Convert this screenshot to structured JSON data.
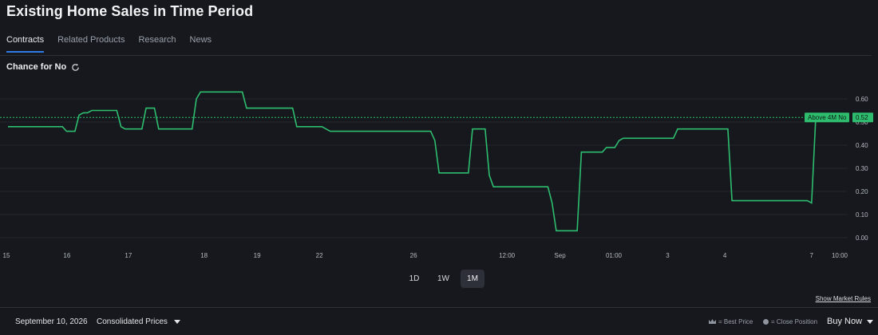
{
  "title": "Existing Home Sales in Time Period",
  "tabs": [
    {
      "label": "Contracts"
    },
    {
      "label": "Related Products"
    },
    {
      "label": "Research"
    },
    {
      "label": "News"
    }
  ],
  "chance_label": "Chance for No",
  "chart_data": {
    "type": "line",
    "series": [
      {
        "name": "Above 4M No",
        "color": "#2ebd6f",
        "values": [
          0.48,
          0.48,
          0.48,
          0.48,
          0.48,
          0.48,
          0.48,
          0.48,
          0.48,
          0.48,
          0.48,
          0.48,
          0.48,
          0.48,
          0.46,
          0.46,
          0.46,
          0.53,
          0.54,
          0.54,
          0.55,
          0.55,
          0.55,
          0.55,
          0.55,
          0.55,
          0.55,
          0.48,
          0.47,
          0.47,
          0.47,
          0.47,
          0.47,
          0.56,
          0.56,
          0.56,
          0.47,
          0.47,
          0.47,
          0.47,
          0.47,
          0.47,
          0.47,
          0.47,
          0.47,
          0.6,
          0.63,
          0.63,
          0.63,
          0.63,
          0.63,
          0.63,
          0.63,
          0.63,
          0.63,
          0.63,
          0.63,
          0.56,
          0.56,
          0.56,
          0.56,
          0.56,
          0.56,
          0.56,
          0.56,
          0.56,
          0.56,
          0.56,
          0.56,
          0.48,
          0.48,
          0.48,
          0.48,
          0.48,
          0.48,
          0.48,
          0.47,
          0.46,
          0.46,
          0.46,
          0.46,
          0.46,
          0.46,
          0.46,
          0.46,
          0.46,
          0.46,
          0.46,
          0.46,
          0.46,
          0.46,
          0.46,
          0.46,
          0.46,
          0.46,
          0.46,
          0.46,
          0.46,
          0.46,
          0.46,
          0.46,
          0.46,
          0.42,
          0.28,
          0.28,
          0.28,
          0.28,
          0.28,
          0.28,
          0.28,
          0.28,
          0.47,
          0.47,
          0.47,
          0.47,
          0.27,
          0.22,
          0.22,
          0.22,
          0.22,
          0.22,
          0.22,
          0.22,
          0.22,
          0.22,
          0.22,
          0.22,
          0.22,
          0.22,
          0.22,
          0.15,
          0.03,
          0.03,
          0.03,
          0.03,
          0.03,
          0.03,
          0.37,
          0.37,
          0.37,
          0.37,
          0.37,
          0.37,
          0.39,
          0.39,
          0.39,
          0.42,
          0.43,
          0.43,
          0.43,
          0.43,
          0.43,
          0.43,
          0.43,
          0.43,
          0.43,
          0.43,
          0.43,
          0.43,
          0.43,
          0.47,
          0.47,
          0.47,
          0.47,
          0.47,
          0.47,
          0.47,
          0.47,
          0.47,
          0.47,
          0.47,
          0.47,
          0.47,
          0.16,
          0.16,
          0.16,
          0.16,
          0.16,
          0.16,
          0.16,
          0.16,
          0.16,
          0.16,
          0.16,
          0.16,
          0.16,
          0.16,
          0.16,
          0.16,
          0.16,
          0.16,
          0.16,
          0.15,
          0.52
        ]
      }
    ],
    "current": {
      "label": "Above 4M No",
      "value": "0.52"
    },
    "y_ticks": [
      "0.00",
      "0.10",
      "0.20",
      "0.30",
      "0.40",
      "0.50",
      "0.60"
    ],
    "ylim": [
      0,
      0.7
    ],
    "x_ticks": [
      {
        "label": "15",
        "at": 0.0
      },
      {
        "label": "16",
        "at": 0.072
      },
      {
        "label": "17",
        "at": 0.145
      },
      {
        "label": "18",
        "at": 0.235
      },
      {
        "label": "19",
        "at": 0.298
      },
      {
        "label": "22",
        "at": 0.372
      },
      {
        "label": "26",
        "at": 0.484
      },
      {
        "label": "12:00",
        "at": 0.595
      },
      {
        "label": "Sep",
        "at": 0.658
      },
      {
        "label": "01:00",
        "at": 0.722
      },
      {
        "label": "3",
        "at": 0.786
      },
      {
        "label": "4",
        "at": 0.854
      },
      {
        "label": "7",
        "at": 0.957
      },
      {
        "label": "10:00",
        "at": 1.0
      }
    ],
    "grid": true,
    "reference_line": 0.52
  },
  "range_buttons": [
    {
      "label": "1D",
      "active": false
    },
    {
      "label": "1W",
      "active": false
    },
    {
      "label": "1M",
      "active": true
    }
  ],
  "market_rules": "Show Market Rules",
  "footer": {
    "date": "September 10, 2026",
    "prices_label": "Consolidated Prices",
    "best_price": "= Best Price",
    "close_position": "= Close Position",
    "buy_label": "Buy Now"
  },
  "colors": {
    "accent": "#2e7be6",
    "line": "#2ebd6f",
    "background": "#16181d"
  }
}
